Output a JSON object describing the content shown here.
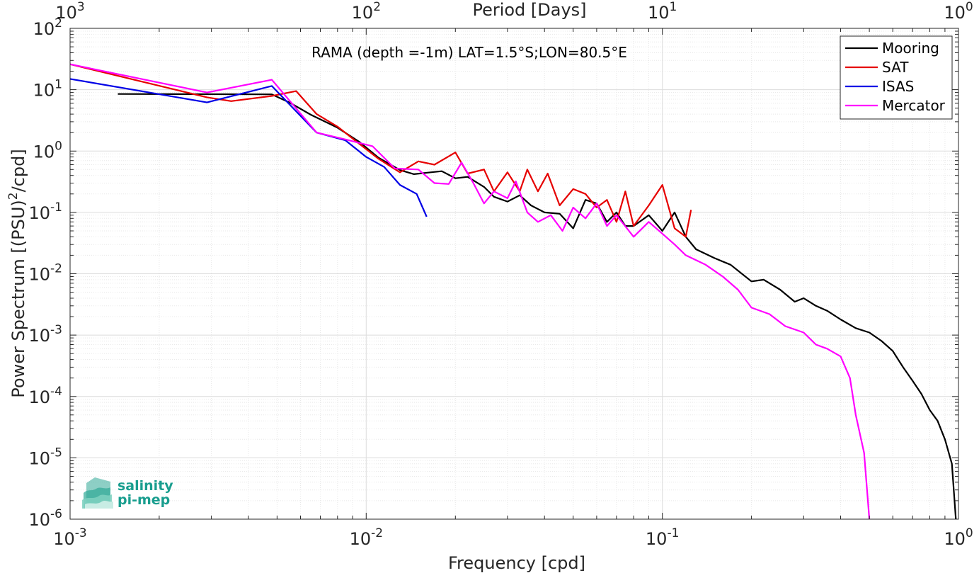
{
  "chart_data": {
    "type": "line",
    "title": "RAMA (depth =-1m) LAT=1.5°S;LON=80.5°E",
    "xlabel": "Frequency [cpd]",
    "ylabel": "Power Spectrum [(PSU)²/cpd]",
    "x2label": "Period [Days]",
    "xscale": "log",
    "yscale": "log",
    "xlim": [
      0.001,
      1
    ],
    "ylim": [
      1e-06,
      100
    ],
    "grid": true,
    "legend_position": "top-right",
    "x_ticks": [
      {
        "base": "10",
        "exp": "-3"
      },
      {
        "base": "10",
        "exp": "-2"
      },
      {
        "base": "10",
        "exp": "-1"
      },
      {
        "base": "10",
        "exp": "0"
      }
    ],
    "y_ticks": [
      {
        "base": "10",
        "exp": "-6"
      },
      {
        "base": "10",
        "exp": "-5"
      },
      {
        "base": "10",
        "exp": "-4"
      },
      {
        "base": "10",
        "exp": "-3"
      },
      {
        "base": "10",
        "exp": "-2"
      },
      {
        "base": "10",
        "exp": "-1"
      },
      {
        "base": "10",
        "exp": "0"
      },
      {
        "base": "10",
        "exp": "1"
      },
      {
        "base": "10",
        "exp": "2"
      }
    ],
    "x2_ticks": [
      {
        "base": "10",
        "exp": "3"
      },
      {
        "base": "10",
        "exp": "2"
      },
      {
        "base": "10",
        "exp": "1"
      },
      {
        "base": "10",
        "exp": "0"
      }
    ],
    "series": [
      {
        "name": "Mooring",
        "color": "#000000",
        "x": [
          0.00145,
          0.0048,
          0.0055,
          0.0065,
          0.008,
          0.0095,
          0.011,
          0.013,
          0.0145,
          0.0165,
          0.018,
          0.02,
          0.022,
          0.025,
          0.027,
          0.03,
          0.033,
          0.036,
          0.04,
          0.045,
          0.05,
          0.055,
          0.06,
          0.065,
          0.07,
          0.075,
          0.08,
          0.09,
          0.1,
          0.11,
          0.12,
          0.13,
          0.15,
          0.17,
          0.2,
          0.22,
          0.25,
          0.28,
          0.3,
          0.33,
          0.36,
          0.4,
          0.45,
          0.5,
          0.55,
          0.6,
          0.65,
          0.7,
          0.75,
          0.8,
          0.85,
          0.9,
          0.95,
          0.98
        ],
        "y": [
          8.5,
          8.4,
          6.2,
          3.9,
          2.4,
          1.4,
          0.78,
          0.49,
          0.42,
          0.45,
          0.47,
          0.36,
          0.38,
          0.26,
          0.18,
          0.15,
          0.19,
          0.13,
          0.1,
          0.095,
          0.055,
          0.16,
          0.14,
          0.07,
          0.1,
          0.06,
          0.06,
          0.09,
          0.05,
          0.1,
          0.04,
          0.025,
          0.018,
          0.014,
          0.0075,
          0.008,
          0.0055,
          0.0035,
          0.004,
          0.003,
          0.0025,
          0.0018,
          0.0013,
          0.0011,
          0.0008,
          0.00055,
          0.0003,
          0.00018,
          0.00011,
          6e-05,
          4e-05,
          2e-05,
          8e-06,
          1e-06
        ]
      },
      {
        "name": "SAT",
        "color": "#e60000",
        "x": [
          0.001,
          0.0029,
          0.0035,
          0.0048,
          0.0058,
          0.0068,
          0.008,
          0.0095,
          0.011,
          0.013,
          0.015,
          0.017,
          0.02,
          0.022,
          0.025,
          0.027,
          0.03,
          0.033,
          0.035,
          0.038,
          0.041,
          0.045,
          0.05,
          0.055,
          0.06,
          0.065,
          0.07,
          0.075,
          0.08,
          0.09,
          0.1,
          0.11,
          0.12,
          0.125
        ],
        "y": [
          26,
          7.5,
          6.5,
          7.9,
          9.5,
          4,
          2.5,
          1.3,
          0.75,
          0.45,
          0.68,
          0.6,
          0.95,
          0.43,
          0.5,
          0.22,
          0.45,
          0.22,
          0.5,
          0.22,
          0.43,
          0.13,
          0.24,
          0.2,
          0.12,
          0.16,
          0.07,
          0.22,
          0.06,
          0.13,
          0.28,
          0.055,
          0.04,
          0.11
        ]
      },
      {
        "name": "ISAS",
        "color": "#0000e6",
        "x": [
          0.001,
          0.0029,
          0.0048,
          0.0068,
          0.0085,
          0.01,
          0.0115,
          0.013,
          0.0148,
          0.016
        ],
        "y": [
          15,
          6.2,
          11.5,
          2.0,
          1.5,
          0.8,
          0.55,
          0.28,
          0.2,
          0.085
        ]
      },
      {
        "name": "Mercator",
        "color": "#ff00ff",
        "x": [
          0.001,
          0.0029,
          0.0048,
          0.0068,
          0.0085,
          0.0105,
          0.0125,
          0.015,
          0.017,
          0.019,
          0.021,
          0.023,
          0.025,
          0.027,
          0.03,
          0.032,
          0.035,
          0.038,
          0.042,
          0.046,
          0.05,
          0.055,
          0.06,
          0.065,
          0.07,
          0.08,
          0.09,
          0.1,
          0.11,
          0.12,
          0.14,
          0.16,
          0.18,
          0.2,
          0.23,
          0.26,
          0.3,
          0.33,
          0.36,
          0.4,
          0.43,
          0.45,
          0.48,
          0.5
        ],
        "y": [
          26,
          9,
          14.5,
          2.0,
          1.55,
          1.2,
          0.52,
          0.5,
          0.3,
          0.29,
          0.65,
          0.3,
          0.14,
          0.22,
          0.17,
          0.32,
          0.1,
          0.07,
          0.09,
          0.05,
          0.12,
          0.08,
          0.14,
          0.06,
          0.09,
          0.04,
          0.07,
          0.045,
          0.03,
          0.02,
          0.014,
          0.009,
          0.0055,
          0.0028,
          0.0022,
          0.0014,
          0.0011,
          0.0007,
          0.0006,
          0.00045,
          0.0002,
          5e-05,
          1.2e-05,
          1e-06
        ]
      }
    ]
  },
  "logo": {
    "line1": "salinity",
    "line2": "pi-mep",
    "color": "#1a9e8f"
  }
}
